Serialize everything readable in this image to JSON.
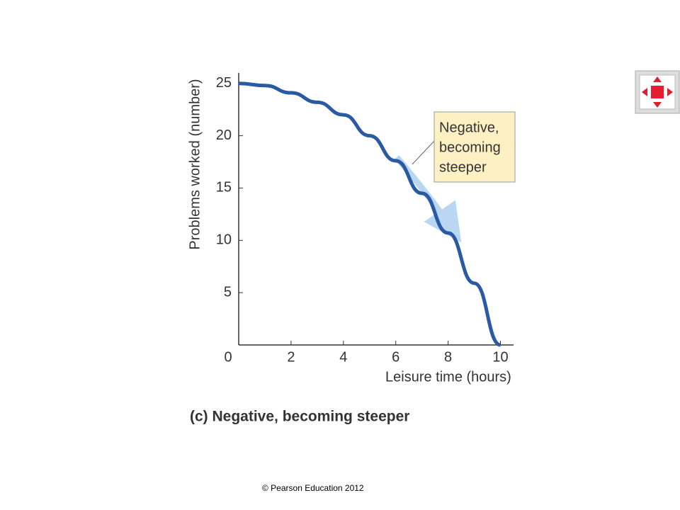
{
  "chart_data": {
    "type": "line",
    "title": "(c) Negative, becoming steeper",
    "x_label": "Leisure time (hours)",
    "y_label": "Problems worked (number)",
    "annotation": [
      "Negative,",
      "becoming",
      "steeper"
    ],
    "x": [
      0,
      1,
      2,
      3,
      4,
      5,
      6,
      7,
      8,
      9,
      10
    ],
    "series": [
      {
        "color": "#2b5aa5",
        "values": [
          25,
          24.8,
          24.1,
          23.2,
          22,
          20,
          17.6,
          14.5,
          10.7,
          5.9,
          0
        ]
      }
    ],
    "xlim": [
      0,
      10.5
    ],
    "xticks": [
      0,
      2,
      4,
      6,
      8,
      10
    ],
    "ylim": [
      0,
      26
    ],
    "yticks": [
      5,
      10,
      15,
      20,
      25
    ]
  },
  "footer": "© Pearson Education 2012"
}
